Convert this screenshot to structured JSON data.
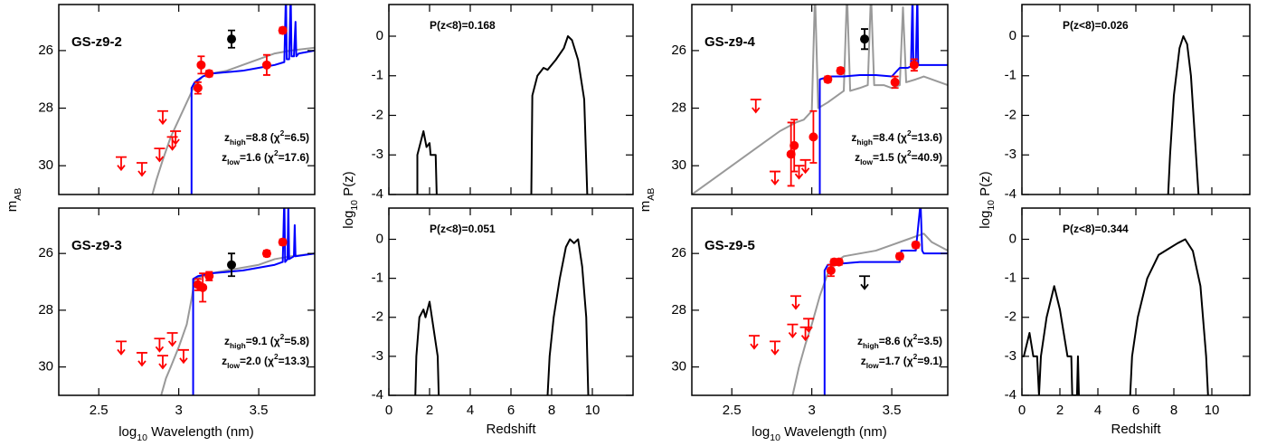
{
  "axis_labels": {
    "sed_y": [
      "m",
      "AB"
    ],
    "pz_y": [
      "log",
      "10",
      " P(z)"
    ],
    "sed_x": [
      "log",
      "10",
      " Wavelength (nm)"
    ],
    "pz_x": "Redshift"
  },
  "chart_data": [
    {
      "type": "sed",
      "title": "GS-z9-2",
      "title_color": "#0000ff",
      "xlim": [
        2.25,
        3.85
      ],
      "ylim": [
        31,
        24.4
      ],
      "xticks": [
        2.5,
        3,
        3.5
      ],
      "yticks": [
        26,
        28,
        30
      ],
      "xtick_labels": false,
      "high_fit": [
        "z",
        "high",
        "=8.8 (χ",
        "2",
        "=6.5)"
      ],
      "high_color": "#0000ff",
      "low_fit": [
        "z",
        "low",
        "=1.6 (χ",
        "2",
        "=17.6)"
      ],
      "low_color": "#999999",
      "series": [
        {
          "kind": "line",
          "color": "#999999",
          "x": [
            2.82,
            2.86,
            2.9,
            2.95,
            3.0,
            3.05,
            3.1,
            3.15,
            3.2,
            3.3,
            3.4,
            3.5,
            3.6,
            3.7,
            3.85
          ],
          "values": [
            31.3,
            30.5,
            29.8,
            29.0,
            28.4,
            27.8,
            27.2,
            26.9,
            26.8,
            26.7,
            26.5,
            26.3,
            26.1,
            26.0,
            25.9
          ]
        },
        {
          "kind": "line",
          "color": "#0000ff",
          "x": [
            3.08,
            3.08,
            3.1,
            3.15,
            3.2,
            3.3,
            3.4,
            3.5,
            3.6,
            3.66,
            3.67,
            3.675,
            3.69,
            3.7,
            3.705,
            3.72,
            3.73,
            3.735,
            3.75,
            3.8,
            3.85
          ],
          "values": [
            31.5,
            27.3,
            27.1,
            26.9,
            26.8,
            26.75,
            26.7,
            26.6,
            26.5,
            26.4,
            24.0,
            26.3,
            26.3,
            24.0,
            26.2,
            26.2,
            25.0,
            26.2,
            26.1,
            26.05,
            26.0
          ]
        },
        {
          "kind": "points",
          "color": "#ff0000",
          "x": [
            3.12,
            3.14,
            3.19,
            3.55,
            3.65
          ],
          "values": [
            27.3,
            26.5,
            26.8,
            26.5,
            25.3
          ],
          "errors": [
            0.2,
            0.3,
            0.1,
            0.35,
            0.1
          ]
        },
        {
          "kind": "points",
          "color": "#000000",
          "x": [
            3.33
          ],
          "values": [
            25.6
          ],
          "errors": [
            0.3
          ]
        },
        {
          "kind": "limit",
          "color": "#ff0000",
          "x": [
            2.64,
            2.77,
            2.88,
            2.9,
            2.96,
            2.98
          ],
          "values": [
            29.7,
            29.9,
            29.4,
            28.1,
            29.0,
            28.8
          ]
        }
      ]
    },
    {
      "type": "sed",
      "title": "GS-z9-3",
      "title_color": "#0000ff",
      "xlim": [
        2.25,
        3.85
      ],
      "ylim": [
        31,
        24.4
      ],
      "xticks": [
        2.5,
        3,
        3.5
      ],
      "yticks": [
        26,
        28,
        30
      ],
      "xtick_labels": true,
      "high_fit": [
        "z",
        "high",
        "=9.1 (χ",
        "2",
        "=5.8)"
      ],
      "high_color": "#0000ff",
      "low_fit": [
        "z",
        "low",
        "=2.0 (χ",
        "2",
        "=13.3)"
      ],
      "low_color": "#999999",
      "series": [
        {
          "kind": "line",
          "color": "#999999",
          "x": [
            2.88,
            2.92,
            2.95,
            3.0,
            3.05,
            3.08,
            3.1,
            3.2,
            3.3,
            3.4,
            3.5,
            3.6,
            3.7,
            3.85
          ],
          "values": [
            31.2,
            30.4,
            30.0,
            29.3,
            28.5,
            27.6,
            26.9,
            26.7,
            26.6,
            26.5,
            26.4,
            26.2,
            26.1,
            26.0
          ]
        },
        {
          "kind": "line",
          "color": "#0000ff",
          "x": [
            3.09,
            3.09,
            3.12,
            3.2,
            3.3,
            3.4,
            3.5,
            3.6,
            3.65,
            3.66,
            3.665,
            3.68,
            3.685,
            3.69,
            3.72,
            3.725,
            3.73,
            3.85
          ],
          "values": [
            31.5,
            26.9,
            26.8,
            26.7,
            26.65,
            26.6,
            26.5,
            26.4,
            26.3,
            24.0,
            26.3,
            26.2,
            24.2,
            26.2,
            26.1,
            25.0,
            26.1,
            26.0
          ]
        },
        {
          "kind": "points",
          "color": "#ff0000",
          "x": [
            3.12,
            3.15,
            3.19,
            3.55,
            3.65
          ],
          "values": [
            27.1,
            27.2,
            26.8,
            26.0,
            25.6
          ],
          "errors": [
            0.2,
            0.5,
            0.15,
            0.1,
            0.1
          ]
        },
        {
          "kind": "points",
          "color": "#000000",
          "x": [
            3.33
          ],
          "values": [
            26.4
          ],
          "errors": [
            0.4
          ]
        },
        {
          "kind": "limit",
          "color": "#ff0000",
          "x": [
            2.64,
            2.77,
            2.88,
            2.9,
            2.96,
            3.03
          ],
          "values": [
            29.1,
            29.5,
            29.0,
            29.6,
            28.8,
            29.4
          ]
        }
      ]
    },
    {
      "type": "pz",
      "annotation": "P(z<8)=0.168",
      "xlim": [
        0,
        12
      ],
      "ylim": [
        -4,
        0.8
      ],
      "xticks": [
        0,
        2,
        4,
        6,
        8,
        10
      ],
      "yticks": [
        -4,
        -3,
        -2,
        -1,
        0
      ],
      "xtick_labels": false,
      "series": [
        {
          "kind": "line",
          "color": "#000000",
          "x": [
            1.4,
            1.4,
            1.6,
            1.7,
            1.85,
            2.0,
            2.05,
            2.3,
            2.35,
            null,
            7.0,
            7.05,
            7.3,
            7.6,
            7.8,
            8.2,
            8.6,
            8.8,
            9.0,
            9.3,
            9.6,
            9.75
          ],
          "values": [
            -4,
            -3,
            -2.6,
            -2.4,
            -2.8,
            -2.7,
            -3.0,
            -3.0,
            -4,
            null,
            -4,
            -1.5,
            -1.0,
            -0.8,
            -0.85,
            -0.6,
            -0.3,
            0.0,
            -0.1,
            -0.6,
            -1.6,
            -4
          ]
        }
      ]
    },
    {
      "type": "pz",
      "annotation": "P(z<8)=0.051",
      "xlim": [
        0,
        12
      ],
      "ylim": [
        -4,
        0.8
      ],
      "xticks": [
        0,
        2,
        4,
        6,
        8,
        10
      ],
      "yticks": [
        -4,
        -3,
        -2,
        -1,
        0
      ],
      "xtick_labels": true,
      "series": [
        {
          "kind": "line",
          "color": "#000000",
          "x": [
            1.3,
            1.35,
            1.5,
            1.7,
            1.8,
            2.0,
            2.2,
            2.4,
            2.45,
            null,
            7.8,
            7.9,
            8.1,
            8.4,
            8.7,
            8.9,
            9.1,
            9.3,
            9.5,
            9.7,
            9.8
          ],
          "values": [
            -4,
            -3,
            -2,
            -1.8,
            -2.0,
            -1.6,
            -2.3,
            -3,
            -4,
            null,
            -4,
            -3,
            -2,
            -1,
            -0.2,
            0.0,
            -0.1,
            0.0,
            -0.7,
            -2,
            -4
          ]
        }
      ]
    },
    {
      "type": "sed",
      "title": "GS-z9-4",
      "title_color": "#0000ff",
      "xlim": [
        2.25,
        3.85
      ],
      "ylim": [
        31,
        24.4
      ],
      "xticks": [
        2.5,
        3,
        3.5
      ],
      "yticks": [
        26,
        28,
        30
      ],
      "xtick_labels": false,
      "high_fit": [
        "z",
        "high",
        "=8.4 (χ",
        "2",
        "=13.6)"
      ],
      "high_color": "#0000ff",
      "low_fit": [
        "z",
        "low",
        "=1.5 (χ",
        "2",
        "=40.9)"
      ],
      "low_color": "#999999",
      "series": [
        {
          "kind": "line",
          "color": "#999999",
          "x": [
            2.25,
            2.4,
            2.5,
            2.6,
            2.7,
            2.8,
            2.9,
            2.95,
            3.0,
            3.02,
            3.04,
            3.1,
            3.15,
            3.2,
            3.22,
            3.24,
            3.3,
            3.35,
            3.37,
            3.39,
            3.45,
            3.5,
            3.55,
            3.57,
            3.59,
            3.65,
            3.7,
            3.85
          ],
          "values": [
            31.0,
            30.4,
            30.0,
            29.6,
            29.2,
            28.8,
            28.5,
            28.4,
            28.1,
            24.0,
            28.0,
            27.8,
            27.6,
            27.4,
            24.0,
            27.4,
            27.3,
            27.2,
            24.0,
            27.2,
            27.2,
            27.3,
            27.2,
            24.5,
            27.1,
            27.0,
            26.9,
            27.2
          ]
        },
        {
          "kind": "line",
          "color": "#0000ff",
          "x": [
            3.05,
            3.05,
            3.08,
            3.1,
            3.2,
            3.3,
            3.4,
            3.5,
            3.55,
            3.6,
            3.62,
            3.63,
            3.635,
            3.65,
            3.66,
            3.665,
            3.7,
            3.85
          ],
          "values": [
            31.5,
            27.0,
            26.95,
            26.9,
            26.9,
            26.85,
            26.85,
            26.9,
            26.6,
            26.6,
            26.55,
            24.0,
            26.5,
            26.5,
            24.0,
            26.5,
            26.5,
            26.5
          ]
        },
        {
          "kind": "points",
          "color": "#ff0000",
          "x": [
            2.87,
            2.89,
            3.01,
            3.1,
            3.18,
            3.52,
            3.64
          ],
          "values": [
            29.6,
            29.3,
            29.0,
            27.0,
            26.7,
            27.1,
            26.5
          ],
          "errors": [
            1.1,
            0.9,
            0.9,
            0.1,
            0.1,
            0.2,
            0.2
          ]
        },
        {
          "kind": "points",
          "color": "#000000",
          "x": [
            3.33
          ],
          "values": [
            25.6
          ],
          "errors": [
            0.35
          ]
        },
        {
          "kind": "limit",
          "color": "#ff0000",
          "x": [
            2.65,
            2.77,
            2.92,
            2.96
          ],
          "values": [
            27.7,
            30.2,
            30.0,
            29.8
          ]
        }
      ]
    },
    {
      "type": "sed",
      "title": "GS-z9-5",
      "title_color": "#0000ff",
      "xlim": [
        2.25,
        3.85
      ],
      "ylim": [
        31,
        24.4
      ],
      "xticks": [
        2.5,
        3,
        3.5
      ],
      "yticks": [
        26,
        28,
        30
      ],
      "xtick_labels": true,
      "high_fit": [
        "z",
        "high",
        "=8.6 (χ",
        "2",
        "=3.5)"
      ],
      "high_color": "#0000ff",
      "low_fit": [
        "z",
        "low",
        "=1.7 (χ",
        "2",
        "=9.1)"
      ],
      "low_color": "#999999",
      "series": [
        {
          "kind": "line",
          "color": "#999999",
          "x": [
            2.88,
            2.92,
            2.96,
            3.0,
            3.05,
            3.1,
            3.15,
            3.2,
            3.3,
            3.4,
            3.5,
            3.6,
            3.65,
            3.7,
            3.75,
            3.85
          ],
          "values": [
            31.0,
            30.0,
            29.2,
            28.5,
            27.5,
            26.7,
            26.3,
            26.1,
            26.0,
            25.9,
            25.7,
            25.5,
            25.4,
            25.3,
            25.6,
            25.9
          ]
        },
        {
          "kind": "line",
          "color": "#0000ff",
          "x": [
            3.08,
            3.08,
            3.1,
            3.2,
            3.3,
            3.4,
            3.5,
            3.55,
            3.56,
            3.6,
            3.65,
            3.68,
            3.69,
            3.7,
            3.75,
            3.85
          ],
          "values": [
            31.5,
            26.6,
            26.4,
            26.35,
            26.3,
            26.3,
            26.3,
            26.3,
            25.9,
            25.9,
            25.9,
            24.2,
            25.9,
            26.0,
            26.0,
            26.0
          ]
        },
        {
          "kind": "points",
          "color": "#ff0000",
          "x": [
            3.12,
            3.14,
            3.17,
            3.55,
            3.65
          ],
          "values": [
            26.6,
            26.3,
            26.3,
            26.1,
            25.7
          ],
          "errors": [
            0.2,
            0.1,
            0.1,
            0.1,
            0.1
          ]
        },
        {
          "kind": "limit",
          "color": "#000000",
          "x": [
            3.33
          ],
          "values": [
            26.8
          ]
        },
        {
          "kind": "limit",
          "color": "#ff0000",
          "x": [
            2.64,
            2.77,
            2.88,
            2.9,
            2.96,
            2.98
          ],
          "values": [
            28.9,
            29.1,
            28.5,
            27.5,
            28.6,
            28.3
          ]
        }
      ]
    },
    {
      "type": "pz",
      "annotation": "P(z<8)=0.026",
      "xlim": [
        0,
        12
      ],
      "ylim": [
        -4,
        0.8
      ],
      "xticks": [
        0,
        2,
        4,
        6,
        8,
        10
      ],
      "yticks": [
        -4,
        -3,
        -2,
        -1,
        0
      ],
      "xtick_labels": false,
      "series": [
        {
          "kind": "line",
          "color": "#000000",
          "x": [
            7.7,
            7.8,
            8.0,
            8.3,
            8.5,
            8.7,
            8.9,
            9.1,
            9.3
          ],
          "values": [
            -4,
            -3,
            -1.5,
            -0.3,
            0.0,
            -0.2,
            -1,
            -2.5,
            -4
          ]
        }
      ]
    },
    {
      "type": "pz",
      "annotation": "P(z<8)=0.344",
      "xlim": [
        0,
        12
      ],
      "ylim": [
        -4,
        0.8
      ],
      "xticks": [
        0,
        2,
        4,
        6,
        8,
        10
      ],
      "yticks": [
        -4,
        -3,
        -2,
        -1,
        0
      ],
      "xtick_labels": true,
      "series": [
        {
          "kind": "line",
          "color": "#000000",
          "x": [
            0,
            0.1,
            0.2,
            0.4,
            0.6,
            0.8,
            0.9,
            1.0,
            1.3,
            1.7,
            2.0,
            2.3,
            2.4,
            2.6,
            2.65,
            2.9,
            2.95,
            3.0,
            null,
            5.7,
            5.8,
            6.1,
            6.6,
            7.2,
            7.7,
            8.2,
            8.6,
            9.0,
            9.4,
            9.7,
            9.8
          ],
          "values": [
            -3,
            -3,
            -2.8,
            -2.4,
            -3,
            -3,
            -4,
            -3,
            -2,
            -1.2,
            -1.8,
            -2.7,
            -3,
            -3,
            -4,
            -4,
            -3,
            -4,
            null,
            -4,
            -3,
            -2,
            -1,
            -0.4,
            -0.25,
            -0.1,
            0.0,
            -0.3,
            -1.2,
            -3,
            -4
          ]
        }
      ]
    }
  ]
}
